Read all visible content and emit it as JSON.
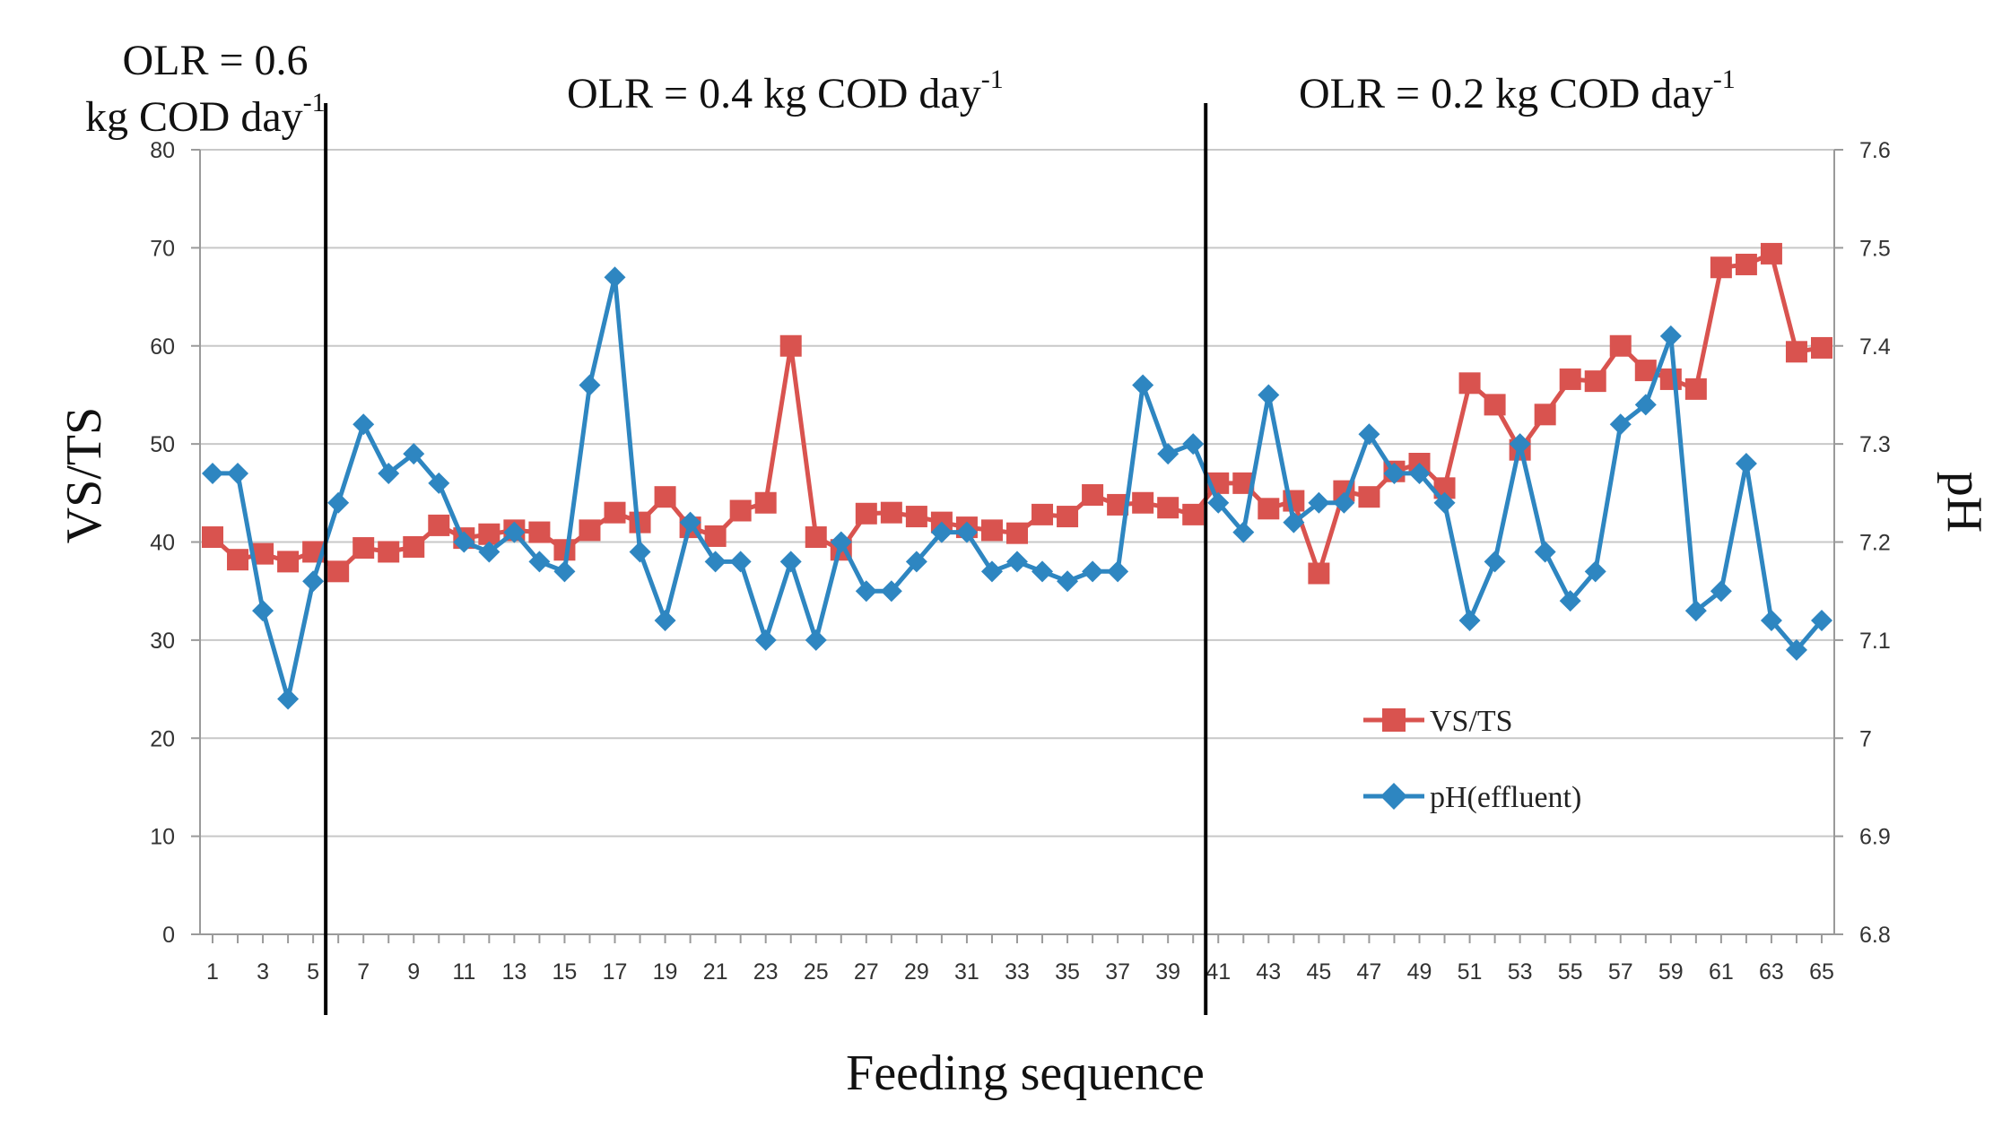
{
  "chart_data": {
    "type": "line",
    "xlabel": "Feeding sequence",
    "ylabel_left": "VS/TS",
    "ylabel_right": "pH",
    "ylim_left": [
      0,
      80
    ],
    "yticks_left": [
      "0",
      "10",
      "20",
      "30",
      "40",
      "50",
      "60",
      "70",
      "80"
    ],
    "ylim_right": [
      6.8,
      7.6
    ],
    "yticks_right": [
      "6.8",
      "6.9",
      "7",
      "7.1",
      "7.2",
      "7.3",
      "7.4",
      "7.5",
      "7.6"
    ],
    "x": [
      1,
      2,
      3,
      4,
      5,
      6,
      7,
      8,
      9,
      10,
      11,
      12,
      13,
      14,
      15,
      16,
      17,
      18,
      19,
      20,
      21,
      22,
      23,
      24,
      25,
      26,
      27,
      28,
      29,
      30,
      31,
      32,
      33,
      34,
      35,
      36,
      37,
      38,
      39,
      40,
      41,
      42,
      43,
      44,
      45,
      46,
      47,
      48,
      49,
      50,
      51,
      52,
      53,
      54,
      55,
      56,
      57,
      58,
      59,
      60,
      61,
      62,
      63,
      64,
      65
    ],
    "xtick_labels": [
      "1",
      "3",
      "5",
      "7",
      "9",
      "11",
      "13",
      "15",
      "17",
      "19",
      "21",
      "23",
      "25",
      "27",
      "29",
      "31",
      "33",
      "35",
      "37",
      "39",
      "41",
      "43",
      "45",
      "47",
      "49",
      "51",
      "53",
      "55",
      "57",
      "59",
      "61",
      "63",
      "65"
    ],
    "grid": true,
    "legend_position": "lower-right",
    "series": [
      {
        "name": "VS/TS",
        "axis": "left",
        "color": "#d9534f",
        "marker": "square",
        "values": [
          40.5,
          38.2,
          38.8,
          38.0,
          39.0,
          37.0,
          39.4,
          39.0,
          39.5,
          41.7,
          40.4,
          40.8,
          41.2,
          41.0,
          39.2,
          41.2,
          43.0,
          42.0,
          44.6,
          41.5,
          40.6,
          43.2,
          44.0,
          60.0,
          40.5,
          39.2,
          42.9,
          43.0,
          42.6,
          42.0,
          41.5,
          41.2,
          40.9,
          42.8,
          42.6,
          44.8,
          43.8,
          44.0,
          43.5,
          42.8,
          46.0,
          46.0,
          43.4,
          44.2,
          36.8,
          45.2,
          44.6,
          47.2,
          48.0,
          45.5,
          56.2,
          54.0,
          49.4,
          53.0,
          56.6,
          56.4,
          60.0,
          57.5,
          56.6,
          55.6,
          68.0,
          68.3,
          69.4,
          59.4,
          59.8
        ]
      },
      {
        "name": "pH(effluent)",
        "axis": "right",
        "color": "#2e86c1",
        "marker": "diamond",
        "values": [
          7.27,
          7.27,
          7.13,
          7.04,
          7.16,
          7.24,
          7.32,
          7.27,
          7.29,
          7.26,
          7.2,
          7.19,
          7.21,
          7.18,
          7.17,
          7.36,
          7.47,
          7.19,
          7.12,
          7.22,
          7.18,
          7.18,
          7.1,
          7.18,
          7.1,
          7.2,
          7.15,
          7.15,
          7.18,
          7.21,
          7.21,
          7.17,
          7.18,
          7.17,
          7.16,
          7.17,
          7.17,
          7.36,
          7.29,
          7.3,
          7.24,
          7.21,
          7.35,
          7.22,
          7.24,
          7.24,
          7.31,
          7.27,
          7.27,
          7.24,
          7.12,
          7.18,
          7.3,
          7.19,
          7.14,
          7.17,
          7.32,
          7.34,
          7.41,
          7.13,
          7.15,
          7.28,
          7.12,
          7.09,
          7.12
        ]
      }
    ],
    "annotations": [
      {
        "main": "OLR = 0.6",
        "line2": "kg COD day",
        "sup": "-1"
      },
      {
        "main": "OLR = 0.4 kg COD day",
        "sup": "-1"
      },
      {
        "main": "OLR = 0.2 kg COD day",
        "sup": "-1"
      }
    ],
    "phase_dividers_after_feeding": [
      5.5,
      40.5
    ]
  }
}
